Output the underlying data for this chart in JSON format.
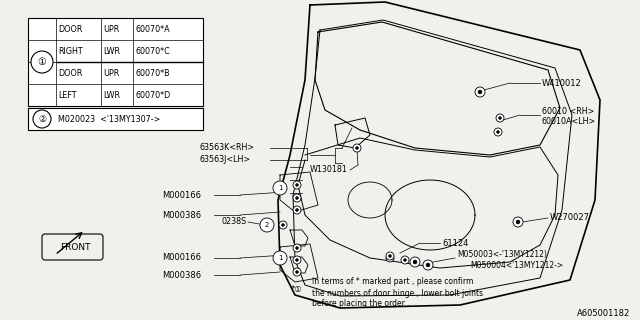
{
  "bg_color": "#f0f0ec",
  "diagram_id": "A605001182",
  "table_rows": [
    [
      "DOOR",
      "UPR",
      "60070*A"
    ],
    [
      "RIGHT",
      "LWR",
      "60070*C"
    ],
    [
      "DOOR",
      "UPR",
      "60070*B"
    ],
    [
      "LEFT",
      "LWR",
      "60070*D"
    ]
  ],
  "circle2_text": "M020023  <'13MY1307->",
  "note_lines": [
    "In terms of * marked part , please confirm",
    "the numbers of door hinge , lower bolt joints",
    "before placing the order ."
  ]
}
